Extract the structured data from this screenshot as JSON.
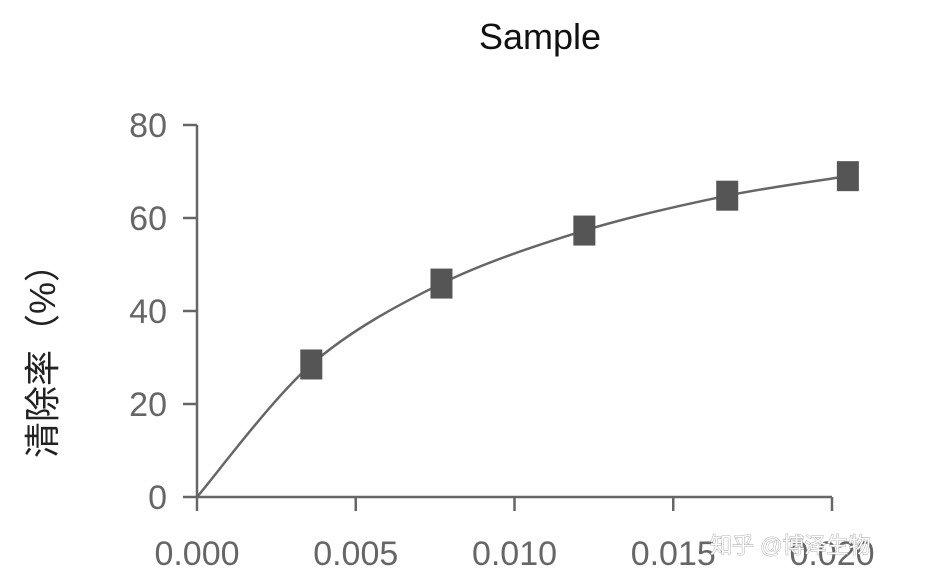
{
  "chart_data": {
    "type": "line",
    "title": "Sample",
    "xlabel": "",
    "ylabel": "清除率（%）",
    "xlim": [
      0,
      0.02
    ],
    "ylim": [
      0,
      80
    ],
    "x_ticks": [
      "0.000",
      "0.005",
      "0.010",
      "0.015",
      "0.020"
    ],
    "y_ticks": [
      "0",
      "20",
      "40",
      "60",
      "80"
    ],
    "series": [
      {
        "x": [
          0,
          0.0036,
          0.0077,
          0.0122,
          0.0167,
          0.0205
        ],
        "values": [
          0,
          28.5,
          45.9,
          57.3,
          64.8,
          69.0
        ],
        "markers": [
          false,
          true,
          true,
          true,
          true,
          true
        ],
        "color": "#555555"
      }
    ],
    "grid": false,
    "legend": "none"
  },
  "watermark": "知乎 @博泽生物"
}
